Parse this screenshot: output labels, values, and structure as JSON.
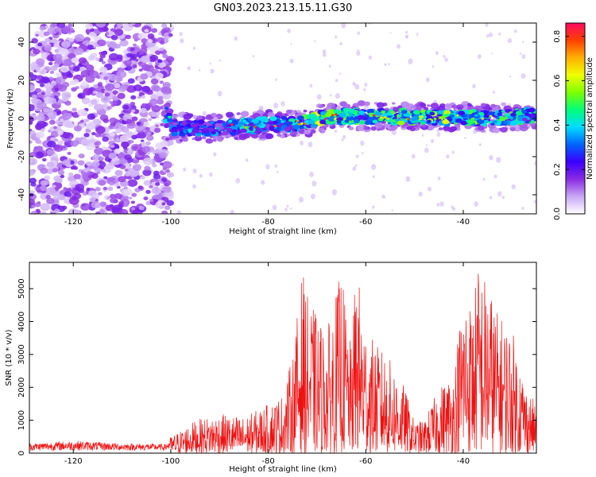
{
  "figure": {
    "title": "GN03.2023.213.15.11.G30"
  },
  "chart_data": [
    {
      "type": "heatmap",
      "title": "GN03.2023.213.15.11.G30",
      "xlabel": "Height of straight line (km)",
      "ylabel": "Frequency (Hz)",
      "xlim": [
        -129,
        -25
      ],
      "ylim": [
        -50,
        50
      ],
      "x_ticks": [
        -120,
        -100,
        -80,
        -60,
        -40
      ],
      "y_ticks": [
        -40,
        -20,
        0,
        20,
        40
      ],
      "x_tick_labels": [
        "-120",
        "-100",
        "-80",
        "-60",
        "-40"
      ],
      "y_tick_labels": [
        "-40",
        "-20",
        "0",
        "20",
        "40"
      ],
      "grid": false,
      "noise_region": {
        "x_from": -129,
        "x_to": -100,
        "amplitude_range": [
          0.0,
          0.1
        ]
      },
      "signal_ridge": [
        {
          "x": -100,
          "freq": -5,
          "amplitude": 0.35
        },
        {
          "x": -95,
          "freq": -5,
          "amplitude": 0.4
        },
        {
          "x": -90,
          "freq": -5,
          "amplitude": 0.35
        },
        {
          "x": -85,
          "freq": -4,
          "amplitude": 0.5
        },
        {
          "x": -80,
          "freq": -3,
          "amplitude": 0.4
        },
        {
          "x": -75,
          "freq": -3,
          "amplitude": 0.45
        },
        {
          "x": -72,
          "freq": -2,
          "amplitude": 0.55
        },
        {
          "x": -70,
          "freq": 0,
          "amplitude": 0.6
        },
        {
          "x": -65,
          "freq": 1,
          "amplitude": 0.55
        },
        {
          "x": -60,
          "freq": 1,
          "amplitude": 0.5
        },
        {
          "x": -55,
          "freq": 1,
          "amplitude": 0.55
        },
        {
          "x": -50,
          "freq": 1,
          "amplitude": 0.6
        },
        {
          "x": -45,
          "freq": 0,
          "amplitude": 0.6
        },
        {
          "x": -40,
          "freq": 1,
          "amplitude": 0.6
        },
        {
          "x": -35,
          "freq": 0,
          "amplitude": 0.55
        },
        {
          "x": -30,
          "freq": 1,
          "amplitude": 0.5
        },
        {
          "x": -25,
          "freq": 2,
          "amplitude": 0.45
        }
      ],
      "colorbar": {
        "label": "Normalized spectral amplitude",
        "range": [
          0.0,
          0.86
        ],
        "ticks": [
          0.0,
          0.2,
          0.4,
          0.6,
          0.8
        ],
        "tick_labels": [
          "0.0",
          "0.2",
          "0.4",
          "0.6",
          "0.8"
        ],
        "colormap": [
          "#ffffff",
          "#c9a8f5",
          "#8a2be2",
          "#3a00ff",
          "#0064ff",
          "#00dcff",
          "#00ff7a",
          "#7dff00",
          "#f0ff00",
          "#ffb000",
          "#ff4000",
          "#ff0a60"
        ]
      }
    },
    {
      "type": "line",
      "xlabel": "Height of straight line (km)",
      "ylabel": "SNR (10 * v/v)",
      "xlim": [
        -129,
        -25
      ],
      "ylim": [
        0,
        5800
      ],
      "x_ticks": [
        -120,
        -100,
        -80,
        -60,
        -40
      ],
      "y_ticks": [
        0,
        1000,
        2000,
        3000,
        4000,
        5000
      ],
      "x_tick_labels": [
        "-120",
        "-100",
        "-80",
        "-60",
        "-40"
      ],
      "y_tick_labels": [
        "0",
        "1000",
        "2000",
        "3000",
        "4000",
        "5000"
      ],
      "grid": false,
      "line_color": "#ee1111",
      "envelope": {
        "x": [
          -129,
          -120,
          -110,
          -101,
          -100,
          -95,
          -90,
          -85,
          -80,
          -77,
          -75,
          -73,
          -72,
          -70,
          -68,
          -65,
          -63,
          -62,
          -60,
          -58,
          -56,
          -54,
          -52,
          -50,
          -48,
          -45,
          -42,
          -40,
          -38,
          -37,
          -35,
          -33,
          -30,
          -27,
          -25
        ],
        "y": [
          300,
          380,
          300,
          280,
          500,
          1000,
          1200,
          1100,
          1500,
          1800,
          3000,
          5600,
          4800,
          4200,
          3700,
          5600,
          3200,
          5800,
          3900,
          3300,
          3100,
          2600,
          2000,
          950,
          1000,
          2000,
          2500,
          5000,
          4600,
          5800,
          5300,
          4300,
          3800,
          2000,
          1500
        ]
      }
    }
  ]
}
